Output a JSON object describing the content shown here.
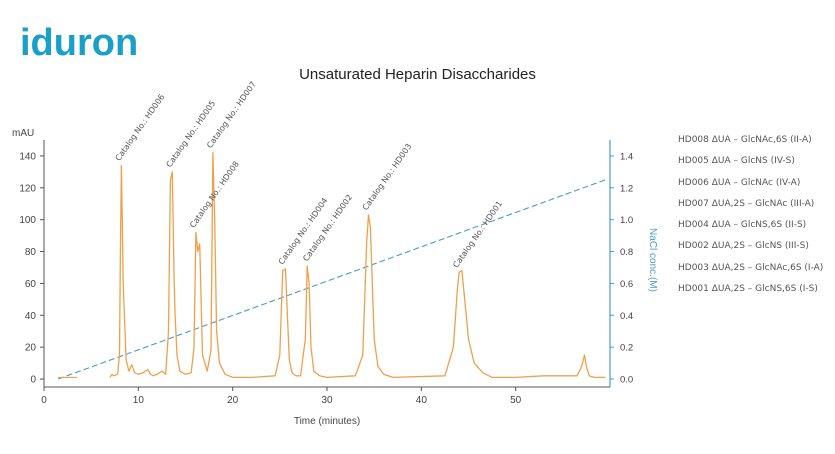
{
  "brand": {
    "logo_text": "iduron",
    "color": "#1aa0c8"
  },
  "chart_data": {
    "type": "line",
    "title": "Unsaturated Heparin Disaccharides",
    "xlabel": "Time (minutes)",
    "ylabel": "mAU",
    "y2label": "NaCl conc.(M)",
    "xlim": [
      0,
      60
    ],
    "ylim": [
      -5,
      150
    ],
    "y2lim": [
      -0.05,
      1.5
    ],
    "xticks": [
      0,
      10,
      20,
      30,
      40,
      50
    ],
    "yticks": [
      0,
      20,
      40,
      60,
      80,
      100,
      120,
      140
    ],
    "y2ticks": [
      0.0,
      0.2,
      0.4,
      0.6,
      0.8,
      1.0,
      1.2,
      1.4
    ],
    "series": [
      {
        "name": "mAU",
        "color": "#f0a04b",
        "axis": "left",
        "x": [
          7.0,
          7.2,
          7.4,
          7.8,
          8.0,
          8.1,
          8.2,
          8.4,
          8.7,
          9.0,
          9.3,
          9.6,
          10.0,
          10.5,
          11.0,
          11.3,
          11.6,
          12.0,
          12.5,
          12.9,
          13.2,
          13.4,
          13.6,
          13.8,
          13.9,
          14.1,
          14.4,
          15.0,
          15.6,
          15.9,
          16.1,
          16.3,
          16.5,
          16.8,
          17.3,
          17.7,
          17.9,
          18.1,
          18.3,
          18.6,
          19.2,
          20.0,
          22.0,
          24.5,
          25.0,
          25.3,
          25.6,
          25.8,
          26.0,
          26.3,
          26.7,
          27.2,
          27.7,
          27.9,
          28.1,
          28.3,
          28.6,
          29.2,
          30.0,
          33.0,
          33.8,
          34.2,
          34.4,
          34.6,
          34.8,
          35.0,
          35.4,
          36.0,
          37.0,
          42.5,
          43.4,
          43.8,
          44.0,
          44.3,
          44.6,
          45.0,
          45.6,
          46.5,
          47.5,
          50.0,
          53.0,
          56.5,
          57.0,
          57.3,
          57.5,
          57.8,
          58.3,
          59.5
        ],
        "values": [
          1,
          3,
          2,
          3,
          15,
          80,
          134,
          60,
          12,
          5,
          9,
          4,
          3,
          4,
          6,
          3,
          2,
          3,
          5,
          3,
          30,
          125,
          130,
          60,
          40,
          15,
          5,
          3,
          4,
          20,
          92,
          80,
          85,
          15,
          5,
          18,
          142,
          100,
          30,
          10,
          3,
          1,
          1,
          2,
          15,
          68,
          69,
          40,
          12,
          4,
          2,
          2,
          25,
          71,
          60,
          20,
          5,
          2,
          1,
          2,
          15,
          85,
          103,
          95,
          60,
          25,
          8,
          3,
          1,
          2,
          20,
          55,
          67,
          68,
          50,
          25,
          10,
          4,
          1,
          1,
          2,
          2,
          8,
          15,
          8,
          2,
          1,
          1
        ]
      },
      {
        "name": "NaCl conc.(M)",
        "color": "#4a9cc4",
        "axis": "right",
        "x": [
          1.5,
          59.5
        ],
        "values": [
          0.0,
          1.25
        ]
      }
    ],
    "peak_labels": [
      {
        "text": "Catalog No.: HD006",
        "x": 8.2,
        "y": 134
      },
      {
        "text": "Catalog No.: HD005",
        "x": 13.6,
        "y": 130
      },
      {
        "text": "Catalog No.: HD007",
        "x": 17.9,
        "y": 142
      },
      {
        "text": "Catalog No.: HD008",
        "x": 16.1,
        "y": 92
      },
      {
        "text": "Catalog No.: HD004",
        "x": 25.5,
        "y": 69
      },
      {
        "text": "Catalog No.: HD002",
        "x": 28.1,
        "y": 71
      },
      {
        "text": "Catalog No.: HD003",
        "x": 34.4,
        "y": 103
      },
      {
        "text": "Catalog No.: HD001",
        "x": 44.0,
        "y": 67
      }
    ],
    "legend": [
      "HD008 ΔUA – GlcNAc,6S (II-A)",
      "HD005 ΔUA – GlcNS (IV-S)",
      "HD006 ΔUA – GlcNAc (IV-A)",
      "HD007 ΔUA,2S – GlcNAc (III-A)",
      "HD004 ΔUA – GlcNS,6S (II-S)",
      "HD002 ΔUA,2S – GlcNS (III-S)",
      "HD003 ΔUA,2S – GlcNAc,6S (I-A)",
      "HD001 ΔUA,2S – GlcNS,6S (I-S)"
    ],
    "legend_position": "right",
    "grid": false
  }
}
